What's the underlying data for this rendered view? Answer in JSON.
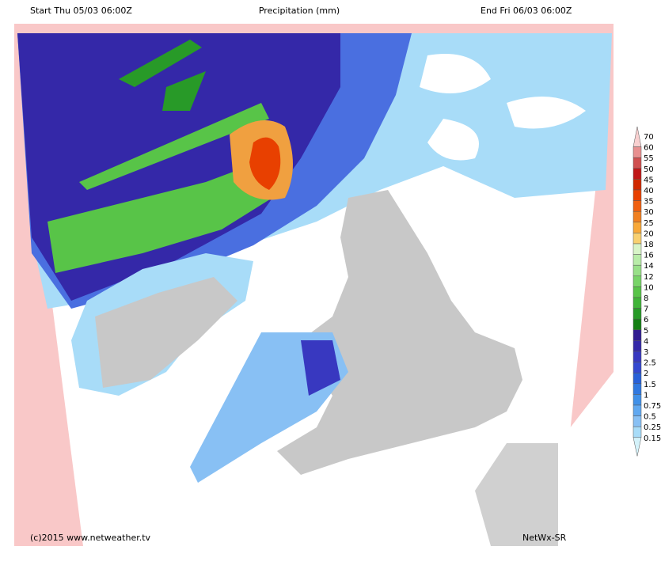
{
  "header": {
    "start": "Start Thu 05/03 06:00Z",
    "title": "Precipitation (mm)",
    "end": "End Fri 06/03 06:00Z"
  },
  "footer": {
    "copyright": "(c)2015 www.netweather.tv",
    "model": "NetWx-SR"
  },
  "legend": {
    "items": [
      {
        "value": 70,
        "color": "#f8d0d0"
      },
      {
        "value": 60,
        "color": "#e89090"
      },
      {
        "value": 55,
        "color": "#d05050"
      },
      {
        "value": 50,
        "color": "#c01818"
      },
      {
        "value": 45,
        "color": "#d02800"
      },
      {
        "value": 40,
        "color": "#e84000"
      },
      {
        "value": 35,
        "color": "#f06010"
      },
      {
        "value": 30,
        "color": "#f08020"
      },
      {
        "value": 25,
        "color": "#f8a838"
      },
      {
        "value": 20,
        "color": "#f8d070"
      },
      {
        "value": 18,
        "color": "#d8f4c8"
      },
      {
        "value": 16,
        "color": "#b8eca8"
      },
      {
        "value": 14,
        "color": "#98e088"
      },
      {
        "value": 12,
        "color": "#78d468"
      },
      {
        "value": 10,
        "color": "#58c448"
      },
      {
        "value": 8,
        "color": "#40b438"
      },
      {
        "value": 7,
        "color": "#289a28"
      },
      {
        "value": 6,
        "color": "#148014"
      },
      {
        "value": 5,
        "color": "#301c90"
      },
      {
        "value": 4,
        "color": "#3428a8"
      },
      {
        "value": 3,
        "color": "#3838c0"
      },
      {
        "value": 2.5,
        "color": "#3448d0"
      },
      {
        "value": 2,
        "color": "#2860d8"
      },
      {
        "value": 1.5,
        "color": "#3078e0"
      },
      {
        "value": 1,
        "color": "#4090e8"
      },
      {
        "value": 0.75,
        "color": "#60a8f0"
      },
      {
        "value": 0.5,
        "color": "#88c0f4"
      },
      {
        "value": 0.25,
        "color": "#a8dcf8"
      },
      {
        "value": 0.15,
        "color": "#d4f2fa"
      }
    ]
  }
}
